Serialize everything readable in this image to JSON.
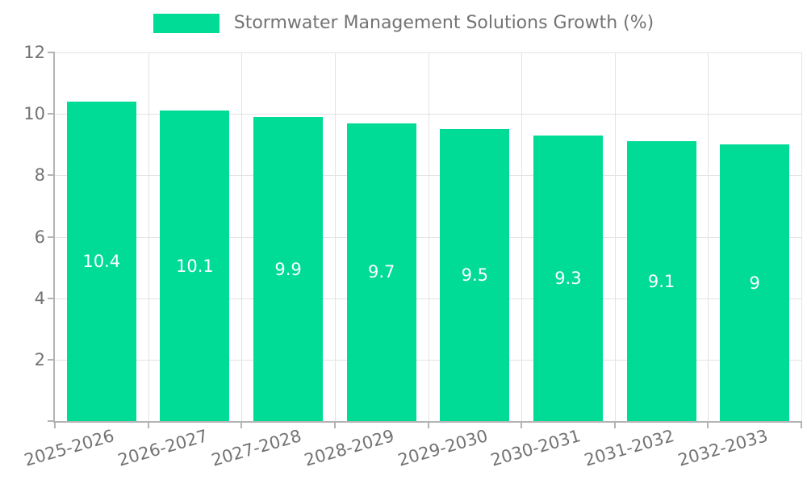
{
  "chart_data": {
    "type": "bar",
    "legend_label": "Stormwater Management Solutions Growth (%)",
    "categories": [
      "2025-2026",
      "2026-2027",
      "2027-2028",
      "2028-2029",
      "2029-2030",
      "2030-2031",
      "2031-2032",
      "2032-2033"
    ],
    "values": [
      10.4,
      10.1,
      9.9,
      9.7,
      9.5,
      9.3,
      9.1,
      9
    ],
    "bar_labels": [
      "10.4",
      "10.1",
      "9.9",
      "9.7",
      "9.5",
      "9.3",
      "9.1",
      "9"
    ],
    "title": "",
    "xlabel": "",
    "ylabel": "",
    "ylim": [
      0,
      12
    ],
    "yticks": [
      0,
      2,
      4,
      6,
      8,
      10,
      12
    ],
    "grid": true,
    "legend_position": "top-center",
    "colors": {
      "bar": "#00DB96",
      "axis": "#b3b3b3",
      "grid": "#e3e3e3",
      "tick_text": "#737373",
      "value_text": "#ffffff"
    }
  }
}
